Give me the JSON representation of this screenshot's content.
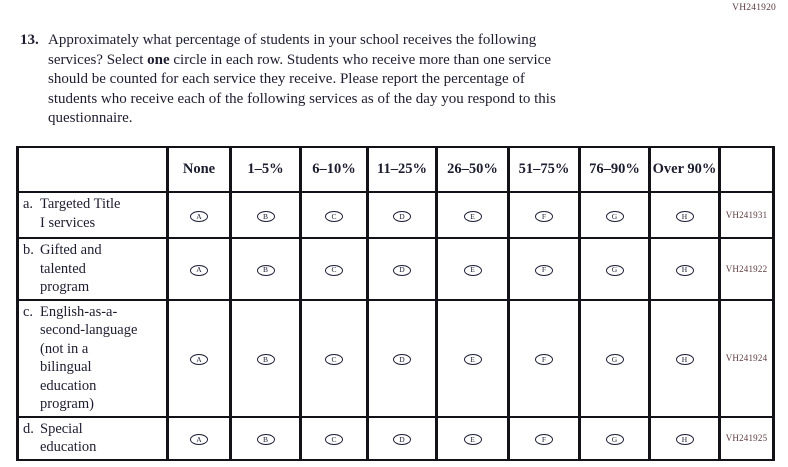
{
  "page": {
    "top_code": "VH241920"
  },
  "question": {
    "number": "13.",
    "text_before_bold": "Approximately what percentage of students in your school receives the following\nservices? Select ",
    "text_bold": "one",
    "text_after_bold": " circle in each row. Students who receive more than one service\nshould be counted for each service they receive. Please report the percentage of\nstudents who receive each of the following services as of the day you respond to this\nquestionnaire."
  },
  "table": {
    "columns": [
      "None",
      "1–5%",
      "6–10%",
      "11–25%",
      "26–50%",
      "51–75%",
      "76–90%",
      "Over 90%"
    ],
    "options": [
      "A",
      "B",
      "C",
      "D",
      "E",
      "F",
      "G",
      "H"
    ],
    "rows": [
      {
        "letter": "a.",
        "text": "Targeted Title\nI services",
        "code": "VH241931",
        "key": "a"
      },
      {
        "letter": "b.",
        "text": "Gifted and\ntalented\nprogram",
        "code": "VH241922",
        "key": "b"
      },
      {
        "letter": "c.",
        "text": "English-as-a-\nsecond-language\n(not in a\nbilingual\neducation\nprogram)",
        "code": "VH241924",
        "key": "c"
      },
      {
        "letter": "d.",
        "text": "Special\neducation",
        "code": "VH241925",
        "key": "d"
      }
    ]
  }
}
